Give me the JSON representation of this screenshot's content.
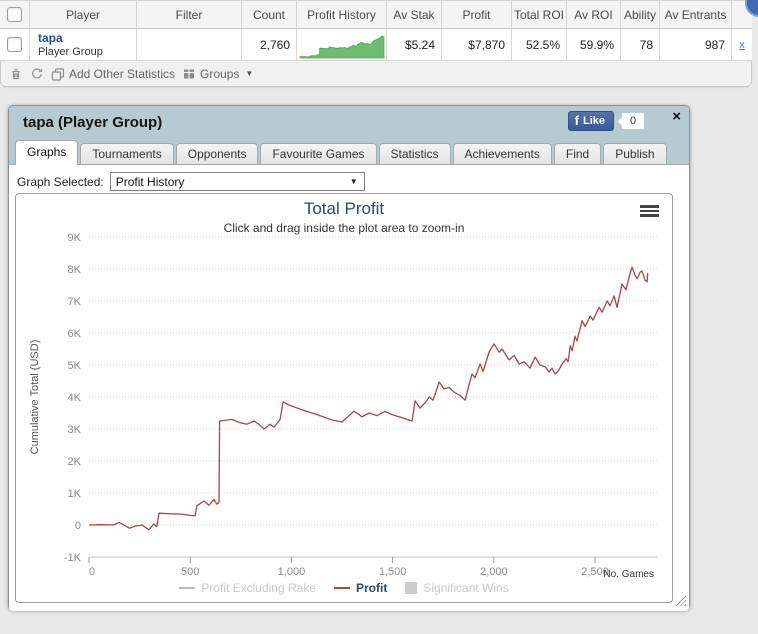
{
  "table": {
    "headers": [
      "",
      "Player",
      "Filter",
      "Count",
      "Profit History",
      "Av Stak",
      "Profit",
      "Total ROI",
      "Av ROI",
      "Ability",
      "Av Entrants",
      ""
    ],
    "row": {
      "player_name": "tapa",
      "player_type": "Player Group",
      "filter": "",
      "count": "2,760",
      "av_stak": "$5.24",
      "profit": "$7,870",
      "total_roi": "52.5%",
      "av_roi": "59.9%",
      "ability": "78",
      "av_entrants": "987",
      "remove_label": "x"
    },
    "sparkline_color": "#6fbe6f",
    "sparkline_edge": "#58a75a"
  },
  "toolbar": {
    "add_other_statistics": "Add Other Statistics",
    "groups": "Groups"
  },
  "panel": {
    "title": "tapa (Player Group)",
    "close_label": "×",
    "facebook": {
      "like_label": "Like",
      "f": "f",
      "count": "0"
    },
    "tabs": [
      {
        "label": "Graphs",
        "active": true
      },
      {
        "label": "Tournaments",
        "active": false
      },
      {
        "label": "Opponents",
        "active": false
      },
      {
        "label": "Favourite Games",
        "active": false
      },
      {
        "label": "Statistics",
        "active": false
      },
      {
        "label": "Achievements",
        "active": false
      },
      {
        "label": "Find",
        "active": false
      },
      {
        "label": "Publish",
        "active": false
      }
    ],
    "graph_selector": {
      "label": "Graph Selected:",
      "value": "Profit History"
    }
  },
  "chart_data": {
    "type": "line",
    "title": "Total Profit",
    "subtitle": "Click and drag inside the plot area to zoom-in",
    "xlabel": "No. Games",
    "ylabel": "Cumulative Total (USD)",
    "xlim": [
      0,
      2806
    ],
    "ylim": [
      -1000,
      9000
    ],
    "grid": "dotted",
    "xtick_values": [
      0,
      500,
      1000,
      1500,
      2000,
      2500
    ],
    "xtick_labels": [
      "0",
      "500",
      "1,000",
      "1,500",
      "2,000",
      "2,500"
    ],
    "ytick_values": [
      9000,
      8000,
      7000,
      6000,
      5000,
      4000,
      3000,
      2000,
      1000,
      0,
      -1000
    ],
    "ytick_labels": [
      "9K",
      "8K",
      "7K",
      "6K",
      "5K",
      "4K",
      "3K",
      "2K",
      "1K",
      "0",
      "-1K"
    ],
    "legend_position": "bottom",
    "legend": [
      {
        "label": "Profit Excluding Rake",
        "symbol": "line",
        "color": "#bbbbbb",
        "text_color": "#c8c8c8",
        "disabled": true,
        "bold": false
      },
      {
        "label": "Profit",
        "symbol": "line",
        "color": "#AA4643",
        "text_color": "#274b6d",
        "disabled": false,
        "bold": true
      },
      {
        "label": "Significant Wins",
        "symbol": "box",
        "color": "#cccccc",
        "text_color": "#c8c8c8",
        "disabled": true,
        "bold": false
      }
    ],
    "series": [
      {
        "name": "Profit",
        "color": "#AA4643",
        "points": [
          [
            0,
            0
          ],
          [
            60,
            10
          ],
          [
            120,
            0
          ],
          [
            150,
            80
          ],
          [
            200,
            -100
          ],
          [
            230,
            -30
          ],
          [
            262,
            0
          ],
          [
            296,
            -150
          ],
          [
            320,
            30
          ],
          [
            335,
            -50
          ],
          [
            346,
            370
          ],
          [
            400,
            350
          ],
          [
            459,
            340
          ],
          [
            500,
            300
          ],
          [
            524,
            290
          ],
          [
            533,
            600
          ],
          [
            568,
            750
          ],
          [
            593,
            620
          ],
          [
            617,
            800
          ],
          [
            632,
            650
          ],
          [
            642,
            700
          ],
          [
            645,
            3250
          ],
          [
            706,
            3300
          ],
          [
            745,
            3200
          ],
          [
            780,
            3150
          ],
          [
            815,
            3250
          ],
          [
            845,
            3120
          ],
          [
            865,
            3000
          ],
          [
            894,
            3150
          ],
          [
            914,
            3060
          ],
          [
            944,
            3300
          ],
          [
            959,
            3850
          ],
          [
            988,
            3750
          ],
          [
            1052,
            3600
          ],
          [
            1127,
            3450
          ],
          [
            1201,
            3280
          ],
          [
            1250,
            3220
          ],
          [
            1309,
            3560
          ],
          [
            1349,
            3380
          ],
          [
            1383,
            3500
          ],
          [
            1423,
            3420
          ],
          [
            1462,
            3550
          ],
          [
            1497,
            3450
          ],
          [
            1532,
            3380
          ],
          [
            1571,
            3300
          ],
          [
            1596,
            3250
          ],
          [
            1611,
            3880
          ],
          [
            1635,
            3650
          ],
          [
            1665,
            3850
          ],
          [
            1680,
            4000
          ],
          [
            1700,
            3900
          ],
          [
            1730,
            4470
          ],
          [
            1754,
            4250
          ],
          [
            1779,
            4300
          ],
          [
            1804,
            4150
          ],
          [
            1833,
            4050
          ],
          [
            1858,
            3900
          ],
          [
            1878,
            4400
          ],
          [
            1892,
            4720
          ],
          [
            1907,
            4600
          ],
          [
            1932,
            5030
          ],
          [
            1947,
            4800
          ],
          [
            1976,
            5400
          ],
          [
            2001,
            5660
          ],
          [
            2026,
            5400
          ],
          [
            2041,
            5500
          ],
          [
            2075,
            5160
          ],
          [
            2100,
            5300
          ],
          [
            2125,
            5030
          ],
          [
            2149,
            5100
          ],
          [
            2179,
            4900
          ],
          [
            2204,
            5250
          ],
          [
            2228,
            5000
          ],
          [
            2253,
            4940
          ],
          [
            2273,
            4780
          ],
          [
            2288,
            4900
          ],
          [
            2302,
            4720
          ],
          [
            2317,
            4800
          ],
          [
            2337,
            5030
          ],
          [
            2357,
            5200
          ],
          [
            2367,
            5100
          ],
          [
            2377,
            5600
          ],
          [
            2387,
            5450
          ],
          [
            2401,
            5900
          ],
          [
            2411,
            5750
          ],
          [
            2436,
            6380
          ],
          [
            2451,
            6200
          ],
          [
            2476,
            6530
          ],
          [
            2490,
            6400
          ],
          [
            2520,
            6800
          ],
          [
            2535,
            6650
          ],
          [
            2560,
            7000
          ],
          [
            2574,
            6850
          ],
          [
            2594,
            7160
          ],
          [
            2609,
            6800
          ],
          [
            2633,
            7530
          ],
          [
            2653,
            7350
          ],
          [
            2668,
            7750
          ],
          [
            2683,
            8060
          ],
          [
            2698,
            7800
          ],
          [
            2708,
            7700
          ],
          [
            2723,
            7900
          ],
          [
            2732,
            7940
          ],
          [
            2747,
            7650
          ],
          [
            2757,
            7600
          ],
          [
            2760,
            7870
          ]
        ]
      }
    ]
  }
}
